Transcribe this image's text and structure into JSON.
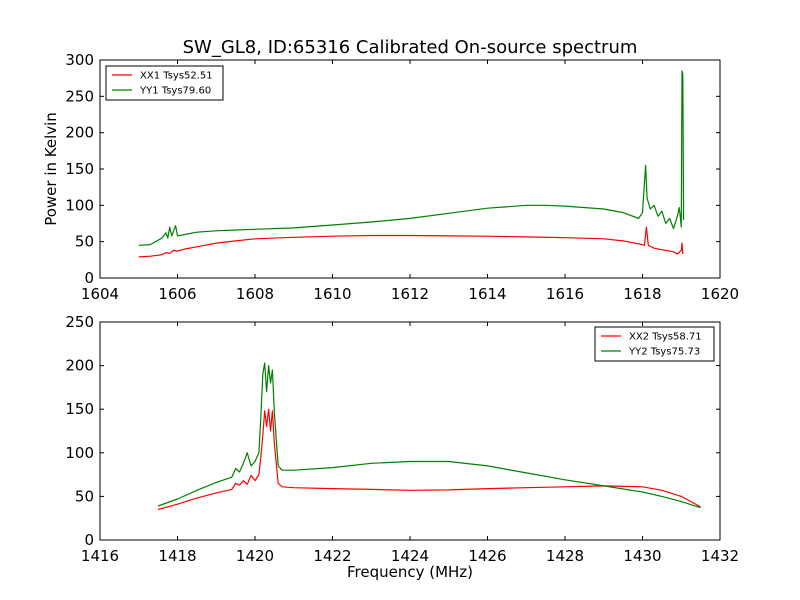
{
  "figure": {
    "title": "SW_GL8, ID:65316 Calibrated On-source spectrum",
    "ylabel": "Power in Kelvin",
    "xlabel": "Frequency (MHz)"
  },
  "chart_data": [
    {
      "type": "line",
      "title": "SW_GL8, ID:65316 Calibrated On-source spectrum",
      "xlabel": "",
      "ylabel": "Power in Kelvin",
      "xlim": [
        1604,
        1620
      ],
      "ylim": [
        0,
        300
      ],
      "xticks": [
        1604,
        1606,
        1608,
        1610,
        1612,
        1614,
        1616,
        1618,
        1620
      ],
      "yticks": [
        0,
        50,
        100,
        150,
        200,
        250,
        300
      ],
      "legend": "top-left",
      "grid": false,
      "series": [
        {
          "name": "XX1 Tsys52.51",
          "color": "#ff0000",
          "points": [
            [
              1605.0,
              29
            ],
            [
              1605.3,
              30
            ],
            [
              1605.6,
              32
            ],
            [
              1605.7,
              35
            ],
            [
              1605.8,
              34
            ],
            [
              1605.9,
              38
            ],
            [
              1606.0,
              37
            ],
            [
              1606.2,
              40
            ],
            [
              1606.5,
              43
            ],
            [
              1607.0,
              48
            ],
            [
              1607.5,
              51
            ],
            [
              1608.0,
              54
            ],
            [
              1609.0,
              56
            ],
            [
              1610.0,
              57.5
            ],
            [
              1611.0,
              58.5
            ],
            [
              1612.0,
              58.5
            ],
            [
              1613.0,
              58
            ],
            [
              1614.0,
              57.5
            ],
            [
              1615.0,
              56.5
            ],
            [
              1616.0,
              55.5
            ],
            [
              1617.0,
              54
            ],
            [
              1617.5,
              51
            ],
            [
              1617.9,
              47
            ],
            [
              1618.05,
              45
            ],
            [
              1618.1,
              70
            ],
            [
              1618.15,
              45
            ],
            [
              1618.3,
              41
            ],
            [
              1618.5,
              39
            ],
            [
              1618.7,
              37
            ],
            [
              1618.8,
              36
            ],
            [
              1618.9,
              33
            ],
            [
              1619.0,
              38
            ],
            [
              1619.02,
              48
            ],
            [
              1619.04,
              33
            ]
          ]
        },
        {
          "name": "YY1 Tsys79.60",
          "color": "#008000",
          "points": [
            [
              1605.0,
              45
            ],
            [
              1605.3,
              46
            ],
            [
              1605.5,
              52
            ],
            [
              1605.6,
              55
            ],
            [
              1605.7,
              62
            ],
            [
              1605.75,
              55
            ],
            [
              1605.8,
              70
            ],
            [
              1605.85,
              58
            ],
            [
              1605.95,
              72
            ],
            [
              1606.0,
              58
            ],
            [
              1606.2,
              60
            ],
            [
              1606.5,
              63
            ],
            [
              1607.0,
              65
            ],
            [
              1607.5,
              66
            ],
            [
              1608.0,
              67
            ],
            [
              1609.0,
              69
            ],
            [
              1610.0,
              73
            ],
            [
              1611.0,
              77
            ],
            [
              1612.0,
              82
            ],
            [
              1613.0,
              89
            ],
            [
              1614.0,
              96
            ],
            [
              1615.0,
              100
            ],
            [
              1615.5,
              100
            ],
            [
              1616.0,
              99
            ],
            [
              1617.0,
              95
            ],
            [
              1617.5,
              90
            ],
            [
              1617.9,
              82
            ],
            [
              1618.0,
              90
            ],
            [
              1618.08,
              155
            ],
            [
              1618.12,
              110
            ],
            [
              1618.2,
              95
            ],
            [
              1618.3,
              100
            ],
            [
              1618.4,
              85
            ],
            [
              1618.5,
              92
            ],
            [
              1618.6,
              75
            ],
            [
              1618.7,
              82
            ],
            [
              1618.8,
              68
            ],
            [
              1618.9,
              85
            ],
            [
              1618.95,
              97
            ],
            [
              1619.0,
              70
            ],
            [
              1619.02,
              285
            ],
            [
              1619.04,
              280
            ],
            [
              1619.06,
              80
            ]
          ]
        }
      ]
    },
    {
      "type": "line",
      "title": "",
      "xlabel": "Frequency (MHz)",
      "ylabel": "",
      "xlim": [
        1416,
        1432
      ],
      "ylim": [
        0,
        250
      ],
      "xticks": [
        1416,
        1418,
        1420,
        1422,
        1424,
        1426,
        1428,
        1430,
        1432
      ],
      "yticks": [
        0,
        50,
        100,
        150,
        200,
        250
      ],
      "legend": "top-right",
      "grid": false,
      "series": [
        {
          "name": "XX2 Tsys58.71",
          "color": "#ff0000",
          "points": [
            [
              1417.5,
              35
            ],
            [
              1418.0,
              41
            ],
            [
              1418.5,
              48
            ],
            [
              1419.0,
              54
            ],
            [
              1419.4,
              58
            ],
            [
              1419.5,
              65
            ],
            [
              1419.6,
              63
            ],
            [
              1419.7,
              68
            ],
            [
              1419.8,
              64
            ],
            [
              1419.9,
              74
            ],
            [
              1420.0,
              68
            ],
            [
              1420.1,
              75
            ],
            [
              1420.15,
              95
            ],
            [
              1420.2,
              120
            ],
            [
              1420.25,
              148
            ],
            [
              1420.3,
              130
            ],
            [
              1420.35,
              150
            ],
            [
              1420.4,
              125
            ],
            [
              1420.45,
              148
            ],
            [
              1420.5,
              110
            ],
            [
              1420.6,
              65
            ],
            [
              1420.7,
              61
            ],
            [
              1421.0,
              60
            ],
            [
              1422.0,
              59
            ],
            [
              1423.0,
              58
            ],
            [
              1424.0,
              57
            ],
            [
              1425.0,
              57.5
            ],
            [
              1426.0,
              59
            ],
            [
              1427.0,
              60
            ],
            [
              1428.0,
              61
            ],
            [
              1429.0,
              62
            ],
            [
              1430.0,
              61
            ],
            [
              1430.5,
              57
            ],
            [
              1431.0,
              50
            ],
            [
              1431.5,
              38
            ]
          ]
        },
        {
          "name": "YY2 Tsys75.73",
          "color": "#008000",
          "points": [
            [
              1417.5,
              39
            ],
            [
              1418.0,
              47
            ],
            [
              1418.5,
              57
            ],
            [
              1419.0,
              66
            ],
            [
              1419.4,
              72
            ],
            [
              1419.5,
              82
            ],
            [
              1419.6,
              78
            ],
            [
              1419.7,
              88
            ],
            [
              1419.8,
              100
            ],
            [
              1419.9,
              85
            ],
            [
              1420.0,
              90
            ],
            [
              1420.1,
              100
            ],
            [
              1420.15,
              140
            ],
            [
              1420.2,
              190
            ],
            [
              1420.25,
              203
            ],
            [
              1420.3,
              170
            ],
            [
              1420.35,
              200
            ],
            [
              1420.4,
              180
            ],
            [
              1420.45,
              195
            ],
            [
              1420.5,
              145
            ],
            [
              1420.6,
              85
            ],
            [
              1420.7,
              80
            ],
            [
              1421.0,
              80
            ],
            [
              1422.0,
              83
            ],
            [
              1423.0,
              88
            ],
            [
              1424.0,
              90
            ],
            [
              1425.0,
              90
            ],
            [
              1426.0,
              85
            ],
            [
              1427.0,
              77
            ],
            [
              1428.0,
              69
            ],
            [
              1429.0,
              62
            ],
            [
              1430.0,
              55
            ],
            [
              1430.5,
              50
            ],
            [
              1431.0,
              44
            ],
            [
              1431.5,
              37
            ]
          ]
        }
      ]
    }
  ]
}
